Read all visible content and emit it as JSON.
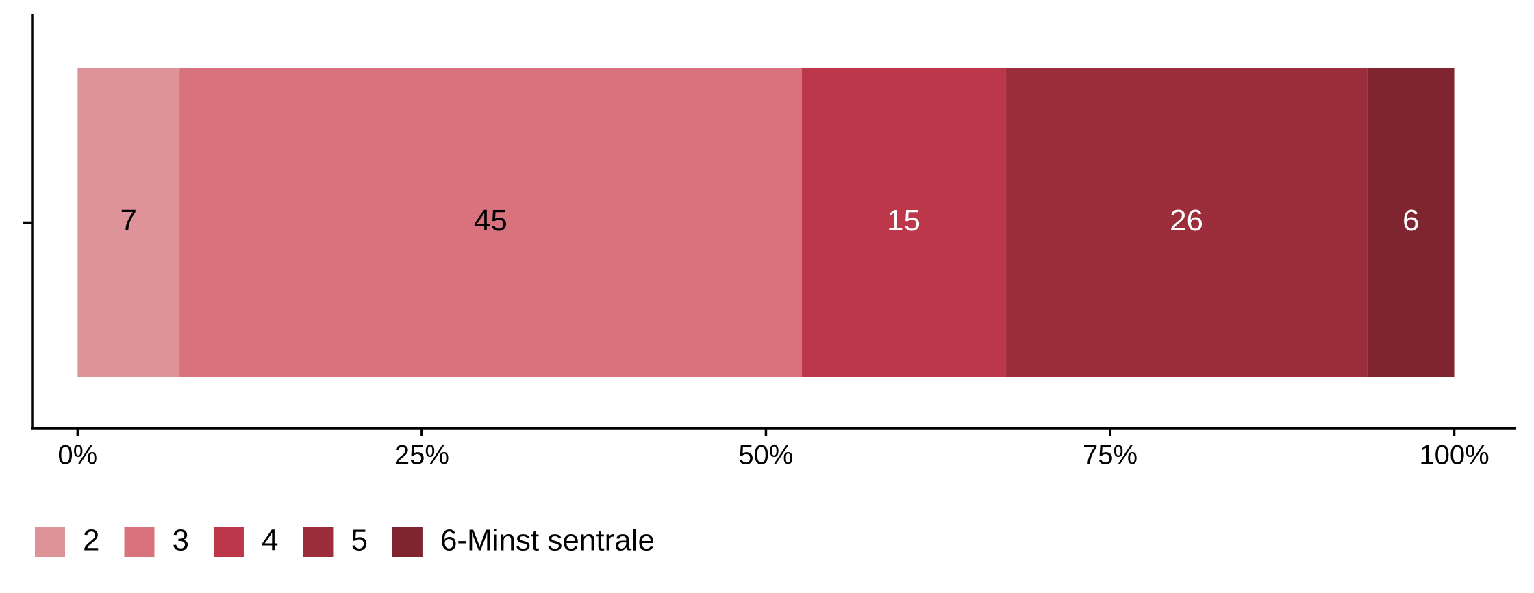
{
  "chart_data": {
    "type": "stacked-bar-horizontal",
    "categories": [
      null
    ],
    "series": [
      {
        "name": "2",
        "color": "#de9399",
        "values": [
          7.4
        ],
        "value_labels": [
          "7"
        ]
      },
      {
        "name": "3",
        "color": "#d8727c",
        "values": [
          45.2
        ],
        "value_labels": [
          "45"
        ]
      },
      {
        "name": "4",
        "color": "#bd374a",
        "values": [
          14.8
        ],
        "value_labels": [
          "15"
        ]
      },
      {
        "name": "5",
        "color": "#9c2e3c",
        "values": [
          26.3
        ],
        "value_labels": [
          "26"
        ]
      },
      {
        "name": "6-Minst sentrale",
        "color": "#7f2530",
        "values": [
          6.3
        ],
        "value_labels": [
          "6"
        ]
      }
    ],
    "xlim": [
      -3.3,
      104.5
    ],
    "xticks": [
      {
        "value": 0,
        "label": "0%"
      },
      {
        "value": 25,
        "label": "25%"
      },
      {
        "value": 50,
        "label": "50%"
      },
      {
        "value": 75,
        "label": "75%"
      },
      {
        "value": 100,
        "label": "100%"
      }
    ],
    "legend": "bottom-left"
  }
}
